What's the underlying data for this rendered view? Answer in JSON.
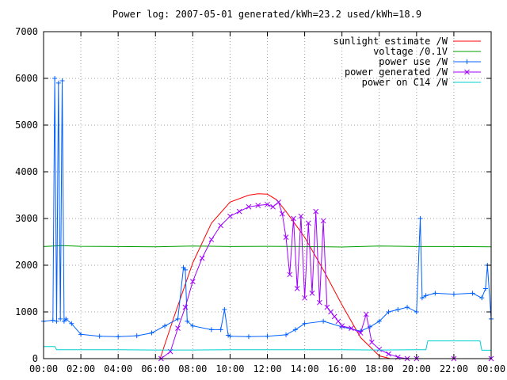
{
  "chart_data": {
    "type": "line",
    "title": "Power log: 2007-05-01 generated/kWh=23.2 used/kWh=18.9",
    "xlabel": "",
    "ylabel": "",
    "xlim": [
      0,
      24
    ],
    "ylim": [
      0,
      7000
    ],
    "x_ticks": [
      "00:00",
      "02:00",
      "04:00",
      "06:00",
      "08:00",
      "10:00",
      "12:00",
      "14:00",
      "16:00",
      "18:00",
      "20:00",
      "22:00",
      "00:00"
    ],
    "y_ticks": [
      "0",
      "1000",
      "2000",
      "3000",
      "4000",
      "5000",
      "6000",
      "7000"
    ],
    "grid": true,
    "legend_position": "top-right",
    "series": [
      {
        "name": "sunlight estimate /W",
        "color": "#ff0000",
        "marker": "none",
        "x": [
          6.25,
          7,
          8,
          9,
          10,
          11,
          11.5,
          12,
          12.5,
          13,
          14,
          15,
          16,
          17,
          18,
          18.6
        ],
        "y": [
          0,
          900,
          2050,
          2900,
          3350,
          3500,
          3530,
          3520,
          3400,
          3150,
          2600,
          1900,
          1150,
          450,
          60,
          0
        ]
      },
      {
        "name": "voltage /0.1V",
        "color": "#00a000",
        "marker": "none",
        "x": [
          0,
          1,
          2,
          4,
          6,
          8,
          10,
          12,
          14,
          16,
          18,
          20,
          22,
          24
        ],
        "y": [
          2400,
          2420,
          2405,
          2400,
          2395,
          2410,
          2400,
          2405,
          2400,
          2390,
          2410,
          2400,
          2400,
          2395
        ]
      },
      {
        "name": "power use /W",
        "color": "#0060ff",
        "marker": "plus",
        "x": [
          0,
          0.5,
          0.6,
          0.7,
          0.8,
          0.9,
          1.0,
          1.1,
          1.2,
          1.5,
          2,
          3,
          4,
          5,
          5.8,
          6.5,
          7.2,
          7.5,
          7.6,
          7.7,
          8,
          9,
          9.5,
          9.7,
          9.9,
          10,
          11,
          12,
          13,
          13.5,
          14,
          15,
          16,
          17,
          17.5,
          18,
          18.5,
          19,
          19.5,
          20,
          20.2,
          20.3,
          20.5,
          21,
          22,
          23,
          23.5,
          23.7,
          23.8,
          24
        ],
        "y": [
          800,
          820,
          6000,
          800,
          5900,
          850,
          5950,
          800,
          850,
          750,
          520,
          480,
          470,
          490,
          550,
          700,
          850,
          1950,
          1900,
          800,
          700,
          620,
          620,
          1050,
          500,
          480,
          470,
          480,
          510,
          620,
          750,
          800,
          680,
          590,
          680,
          800,
          1000,
          1050,
          1100,
          1000,
          3000,
          1300,
          1350,
          1400,
          1380,
          1400,
          1300,
          1500,
          2000,
          850
        ]
      },
      {
        "name": "power generated /W",
        "color": "#a000ff",
        "marker": "x",
        "x": [
          6.3,
          6.8,
          7.2,
          7.6,
          8,
          8.5,
          9,
          9.5,
          10,
          10.5,
          11,
          11.5,
          12,
          12.3,
          12.6,
          12.8,
          13,
          13.2,
          13.4,
          13.6,
          13.8,
          14,
          14.2,
          14.4,
          14.6,
          14.8,
          15,
          15.2,
          15.4,
          15.6,
          15.8,
          16,
          16.5,
          17,
          17.3,
          17.6,
          18,
          18.5,
          19,
          19.5,
          20,
          22,
          24
        ],
        "y": [
          0,
          150,
          650,
          1100,
          1650,
          2150,
          2550,
          2850,
          3050,
          3150,
          3250,
          3280,
          3300,
          3250,
          3350,
          3100,
          2600,
          1800,
          3000,
          1500,
          3050,
          1300,
          2900,
          1400,
          3150,
          1200,
          2950,
          1100,
          1000,
          900,
          800,
          700,
          650,
          550,
          950,
          350,
          200,
          100,
          30,
          0,
          0,
          0,
          0
        ]
      },
      {
        "name": "power on C14 /W",
        "color": "#00d0d0",
        "marker": "none",
        "x": [
          0,
          0.6,
          0.7,
          2,
          4,
          6,
          8,
          10,
          12,
          14,
          16,
          18,
          20,
          20.5,
          20.6,
          22,
          23.4,
          23.5,
          24
        ],
        "y": [
          260,
          260,
          190,
          190,
          190,
          185,
          185,
          190,
          190,
          190,
          190,
          185,
          190,
          190,
          380,
          380,
          380,
          180,
          180
        ]
      }
    ]
  }
}
